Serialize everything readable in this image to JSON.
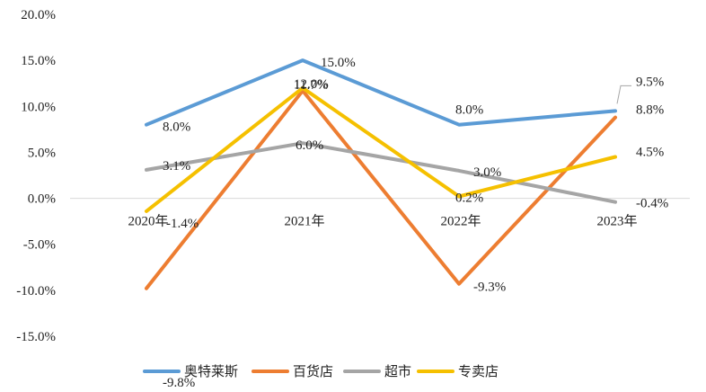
{
  "chart_data": {
    "type": "line",
    "categories": [
      "2020年",
      "2021年",
      "2022年",
      "2023年"
    ],
    "ylim": [
      -15,
      20
    ],
    "ytick_step": 5,
    "ytick_labels": [
      "20.0%",
      "15.0%",
      "10.0%",
      "5.0%",
      "0.0%",
      "-5.0%",
      "-10.0%",
      "-15.0%"
    ],
    "grid": false,
    "legend_position": "bottom",
    "series": [
      {
        "name": "奥特莱斯",
        "color": "#5B9BD5",
        "values": [
          8.0,
          15.0,
          8.0,
          9.5
        ],
        "labels": [
          "8.0%",
          "15.0%",
          "8.0%",
          "9.5%"
        ]
      },
      {
        "name": "百货店",
        "color": "#ED7D31",
        "values": [
          -9.8,
          11.7,
          -9.3,
          8.8
        ],
        "labels": [
          "-9.8%",
          "11.7%",
          "-9.3%",
          "8.8%"
        ]
      },
      {
        "name": "超市",
        "color": "#A5A5A5",
        "values": [
          3.1,
          6.0,
          3.0,
          -0.4
        ],
        "labels": [
          "3.1%",
          "6.0%",
          "3.0%",
          "-0.4%"
        ]
      },
      {
        "name": "专卖店",
        "color": "#F5C000",
        "values": [
          -1.4,
          12.0,
          0.2,
          4.5
        ],
        "labels": [
          "-1.4%",
          "12.0%",
          "0.2%",
          "4.5%"
        ]
      }
    ]
  }
}
